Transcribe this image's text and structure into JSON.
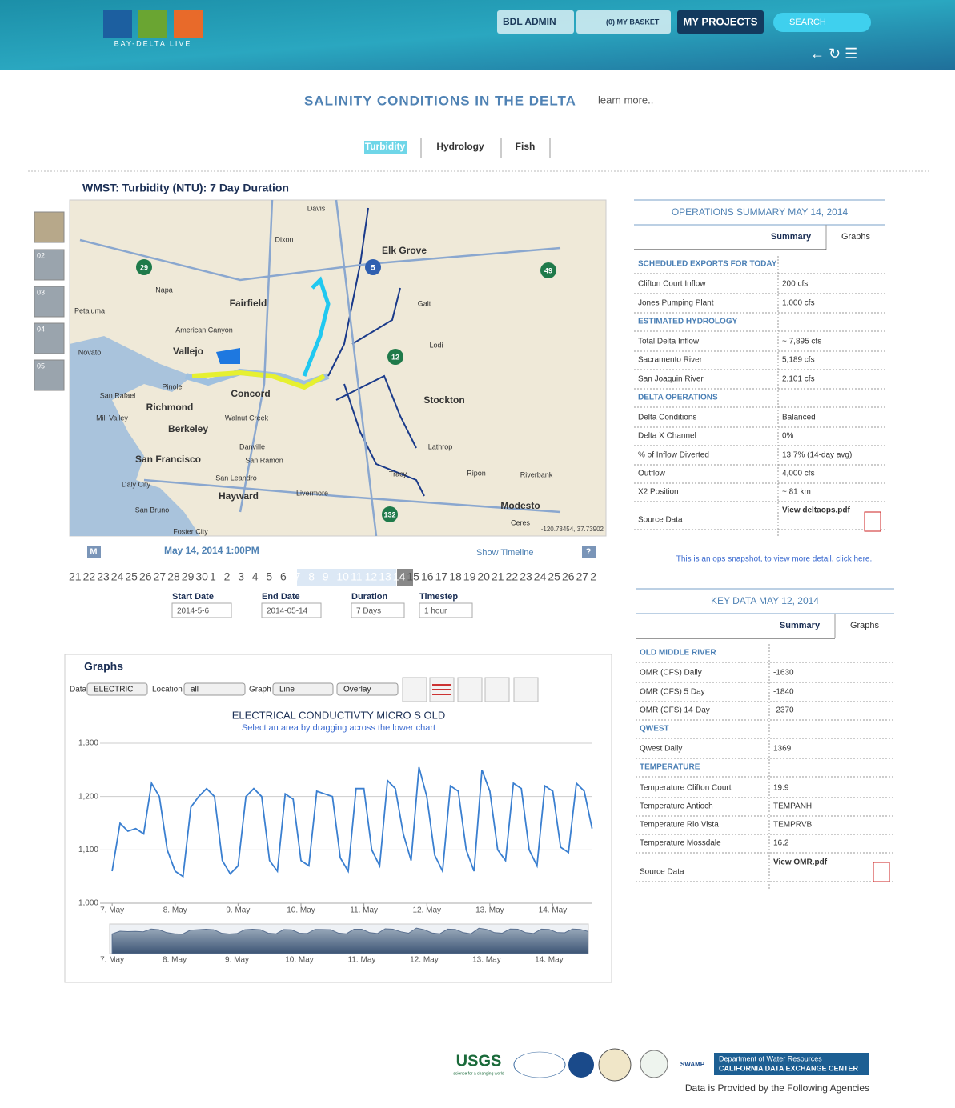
{
  "header": {
    "logo": "BAY-DELTA LIVE",
    "admin": "BDL ADMIN",
    "basket": "(0) MY BASKET",
    "projects": "MY PROJECTS",
    "search": "SEARCH"
  },
  "page_title": "SALINITY CONDITIONS IN THE DELTA",
  "learn_more": "learn more..",
  "tabs": [
    "Turbidity",
    "Hydrology",
    "Fish"
  ],
  "map": {
    "title": "WMST: Turbidity (NTU): 7 Day Duration",
    "thumbnails": [
      "02",
      "03",
      "04",
      "05"
    ],
    "labels": [
      "Davis",
      "Dixon",
      "Elk Grove",
      "Napa",
      "Fairfield",
      "Galt",
      "American Canyon",
      "Petaluma",
      "Novato",
      "Vallejo",
      "Lodi",
      "Pinole",
      "Concord",
      "Stockton",
      "San Rafael",
      "Richmond",
      "Walnut Creek",
      "Mill Valley",
      "Berkeley",
      "Danville",
      "Lathrop",
      "San Francisco",
      "San Ramon",
      "Ripon",
      "Riverbank",
      "Tracy",
      "San Leandro",
      "Daly City",
      "Livermore",
      "Hayward",
      "Modesto",
      "San Bruno",
      "Ceres",
      "Foster City"
    ],
    "highways": [
      "29",
      "5",
      "49",
      "12",
      "132"
    ],
    "coords": "-120.73454, 37.73902",
    "m": "M",
    "date": "May 14, 2014 1:00PM",
    "show_timeline": "Show Timeline",
    "help": "?",
    "timeline": [
      "21",
      "22",
      "23",
      "24",
      "25",
      "26",
      "27",
      "28",
      "29",
      "30",
      "1",
      "2",
      "3",
      "4",
      "5",
      "6",
      "7",
      "8",
      "9",
      "10",
      "11",
      "12",
      "13",
      "14",
      "15",
      "16",
      "17",
      "18",
      "19",
      "20",
      "21",
      "22",
      "23",
      "24",
      "25",
      "26",
      "27",
      "2"
    ],
    "fields": [
      {
        "label": "Start Date",
        "value": "2014-5-6"
      },
      {
        "label": "End Date",
        "value": "2014-05-14"
      },
      {
        "label": "Duration",
        "value": "7 Days"
      },
      {
        "label": "Timestep",
        "value": "1 hour"
      }
    ]
  },
  "ops": {
    "title": "OPERATIONS SUMMARY MAY 14, 2014",
    "tabs": [
      "Summary",
      "Graphs"
    ],
    "rows": [
      {
        "section": "SCHEDULED EXPORTS FOR TODAY"
      },
      {
        "label": "Clifton Court Inflow",
        "value": "200 cfs"
      },
      {
        "label": "Jones Pumping Plant",
        "value": "1,000 cfs"
      },
      {
        "section": "ESTIMATED HYDROLOGY"
      },
      {
        "label": "Total Delta Inflow",
        "value": "~ 7,895 cfs"
      },
      {
        "label": "Sacramento River",
        "value": "5,189 cfs"
      },
      {
        "label": "San Joaquin River",
        "value": "2,101 cfs"
      },
      {
        "section": "DELTA OPERATIONS"
      },
      {
        "label": "Delta Conditions",
        "value": "Balanced"
      },
      {
        "label": "Delta X Channel",
        "value": "0%"
      },
      {
        "label": "% of Inflow Diverted",
        "value": "13.7% (14-day avg)"
      },
      {
        "label": "Outflow",
        "value": "4,000 cfs"
      },
      {
        "label": "X2 Position",
        "value": "~ 81 km"
      },
      {
        "label": "Source Data",
        "value": "View deltaops.pdf"
      }
    ],
    "note": "This is an ops snapshot, to view more detail, click here."
  },
  "key": {
    "title": "KEY DATA MAY 12, 2014",
    "tabs": [
      "Summary",
      "Graphs"
    ],
    "rows": [
      {
        "section": "OLD MIDDLE RIVER"
      },
      {
        "label": "OMR (CFS) Daily",
        "value": "-1630"
      },
      {
        "label": "OMR (CFS) 5 Day",
        "value": "-1840"
      },
      {
        "label": "OMR (CFS) 14-Day",
        "value": "-2370"
      },
      {
        "section": "QWEST"
      },
      {
        "label": "Qwest Daily",
        "value": "1369"
      },
      {
        "section": "TEMPERATURE"
      },
      {
        "label": "Temperature Clifton Court",
        "value": "19.9"
      },
      {
        "label": "Temperature Antioch",
        "value": "TEMPANH"
      },
      {
        "label": "Temperature Rio Vista",
        "value": "TEMPRVB"
      },
      {
        "label": "Temperature Mossdale",
        "value": "16.2"
      },
      {
        "label": "Source Data",
        "value": "View OMR.pdf"
      }
    ]
  },
  "graphs": {
    "title": "Graphs",
    "controls": [
      {
        "label": "Data",
        "value": "ELECTRIC"
      },
      {
        "label": "Location",
        "value": "all"
      },
      {
        "label": "Graph",
        "value": "Line"
      },
      {
        "value": "Overlay"
      }
    ],
    "chart_data": {
      "type": "line",
      "title": "ELECTRICAL CONDUCTIVTY MICRO S OLD",
      "subtitle": "Select an area by dragging across the lower chart",
      "color": "#3a7fd0",
      "xlim": [
        -0.04,
        7.63
      ],
      "xticks": [
        {
          "value": 0,
          "label": "7. May"
        },
        {
          "value": 1,
          "label": "8. May"
        },
        {
          "value": 2,
          "label": "9. May"
        },
        {
          "value": 3,
          "label": "10. May"
        },
        {
          "value": 4,
          "label": "11. May"
        },
        {
          "value": 5,
          "label": "12. May"
        },
        {
          "value": 6,
          "label": "13. May"
        },
        {
          "value": 7,
          "label": "14. May"
        }
      ],
      "ylim": [
        1000,
        1300
      ],
      "yticks": [
        {
          "value": 1000,
          "label": "1,000"
        },
        {
          "value": 1100,
          "label": "1,100"
        },
        {
          "value": 1200,
          "label": "1,200"
        },
        {
          "value": 1300,
          "label": "1,300"
        }
      ],
      "grid": true,
      "x": [
        0,
        0.125,
        0.25,
        0.375,
        0.5,
        0.625,
        0.75,
        0.875,
        1,
        1.125,
        1.25,
        1.375,
        1.5,
        1.625,
        1.75,
        1.875,
        2,
        2.125,
        2.25,
        2.375,
        2.5,
        2.625,
        2.75,
        2.875,
        3,
        3.125,
        3.25,
        3.375,
        3.5,
        3.625,
        3.75,
        3.875,
        4,
        4.125,
        4.25,
        4.375,
        4.5,
        4.625,
        4.75,
        4.875,
        5,
        5.125,
        5.25,
        5.375,
        5.5,
        5.625,
        5.75,
        5.875,
        6,
        6.125,
        6.25,
        6.375,
        6.5,
        6.625,
        6.75,
        6.875,
        7,
        7.125,
        7.25,
        7.375,
        7.5,
        7.625
      ],
      "values": [
        1060,
        1150,
        1135,
        1140,
        1130,
        1225,
        1200,
        1100,
        1060,
        1050,
        1180,
        1200,
        1215,
        1200,
        1080,
        1055,
        1070,
        1200,
        1215,
        1200,
        1080,
        1060,
        1205,
        1195,
        1080,
        1070,
        1210,
        1205,
        1200,
        1085,
        1060,
        1215,
        1215,
        1100,
        1070,
        1230,
        1215,
        1130,
        1080,
        1255,
        1200,
        1090,
        1060,
        1220,
        1210,
        1100,
        1060,
        1250,
        1210,
        1100,
        1080,
        1225,
        1215,
        1100,
        1070,
        1220,
        1210,
        1105,
        1095,
        1225,
        1210,
        1140
      ]
    }
  },
  "footer": {
    "usgs": "USGS",
    "usgs_tag": "science for a changing world",
    "swamp": "SWAMP",
    "dwr": "Department of Water Resources",
    "cdec": "CALIFORNIA DATA EXCHANGE CENTER",
    "caption": "Data is Provided by the Following Agencies"
  }
}
